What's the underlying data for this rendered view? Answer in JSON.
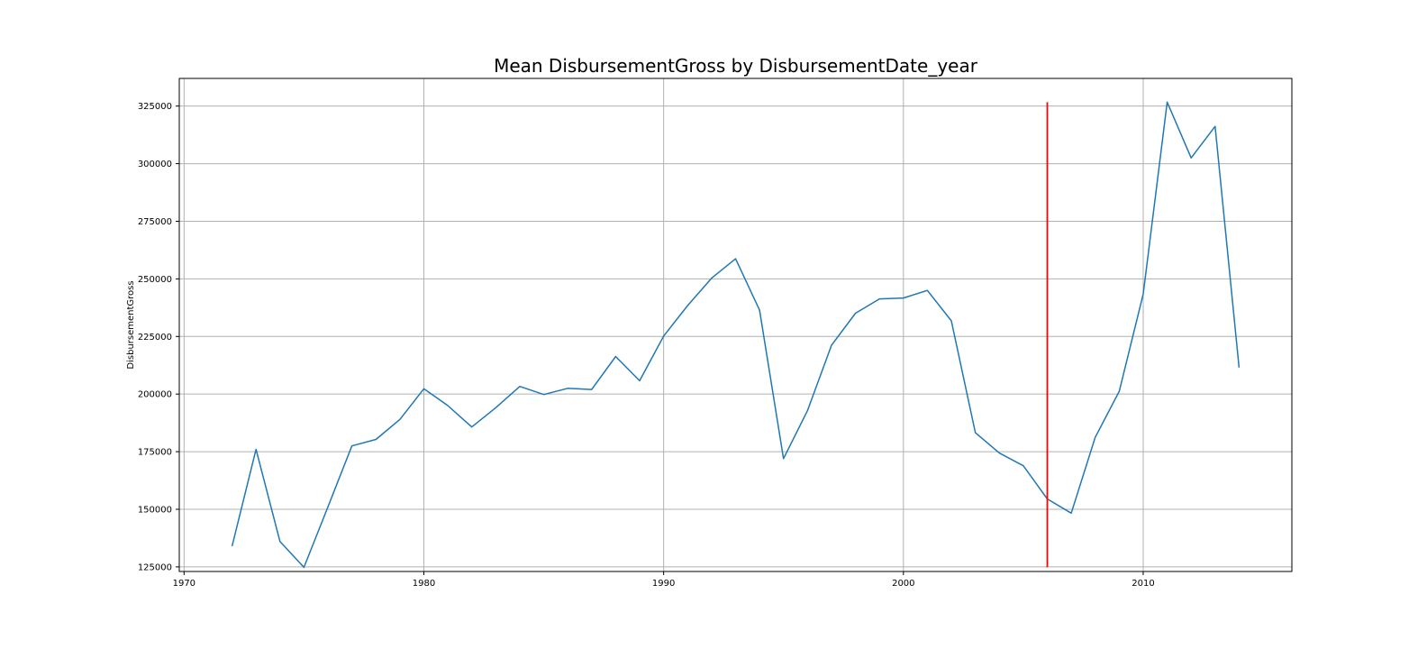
{
  "chart_data": {
    "type": "line",
    "title": "Mean DisbursementGross by DisbursementDate_year",
    "xlabel": "",
    "ylabel": "DisbursementGross",
    "xlim": [
      1969.8,
      2016.2
    ],
    "ylim": [
      123000,
      337000
    ],
    "grid": true,
    "x_ticks": [
      1970,
      1980,
      1990,
      2000,
      2010
    ],
    "y_ticks": [
      125000,
      150000,
      175000,
      200000,
      225000,
      250000,
      275000,
      300000,
      325000
    ],
    "series": [
      {
        "color": "#1f77b4",
        "x": [
          1972,
          1973,
          1974,
          1975,
          1976,
          1977,
          1978,
          1979,
          1980,
          1981,
          1982,
          1983,
          1984,
          1985,
          1986,
          1987,
          1988,
          1989,
          1990,
          1991,
          1992,
          1993,
          1994,
          1995,
          1996,
          1997,
          1998,
          1999,
          2000,
          2001,
          2002,
          2003,
          2004,
          2005,
          2006,
          2007,
          2008,
          2009,
          2010,
          2011,
          2012,
          2013,
          2014
        ],
        "y": [
          134000,
          176000,
          136000,
          124800,
          151000,
          177500,
          180300,
          189000,
          202300,
          195000,
          185700,
          194100,
          203300,
          199800,
          202500,
          202000,
          216300,
          205800,
          225200,
          238400,
          250300,
          258700,
          236500,
          172000,
          192800,
          221200,
          235100,
          241300,
          241700,
          245000,
          231800,
          183200,
          174400,
          168900,
          154500,
          148300,
          181200,
          201200,
          243400,
          326700,
          302500,
          316200,
          211500
        ]
      }
    ],
    "vlines": [
      {
        "x": 2006,
        "ymin": 124800,
        "ymax": 326700,
        "color": "#ff0000"
      }
    ]
  }
}
